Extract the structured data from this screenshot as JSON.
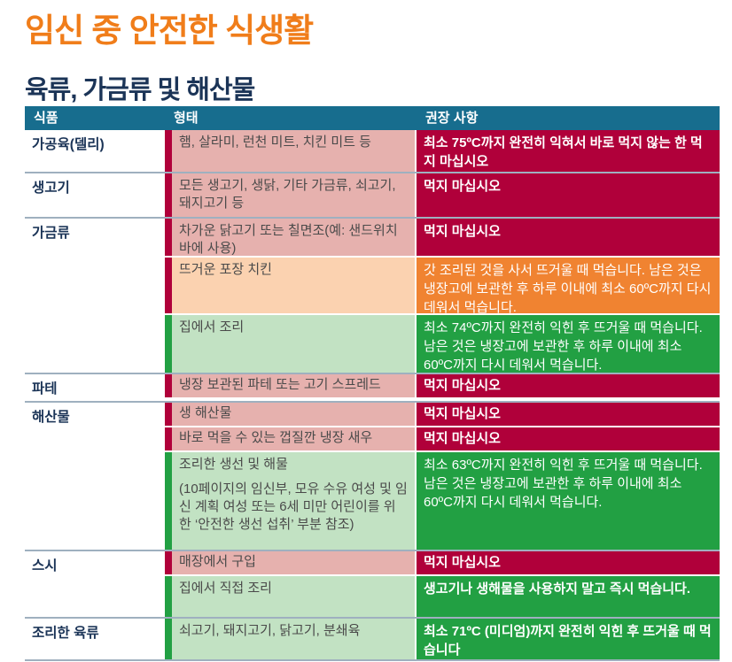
{
  "title": "임신 중 안전한 식생활",
  "subtitle": "육류, 가금류 및 해산물",
  "colors": {
    "header": "#176d8e",
    "avoid": "#b0003a",
    "caution": "#f08331",
    "safe": "#22a043",
    "title": "#f07d1a"
  },
  "table": {
    "headers": [
      "식품",
      "형태",
      "권장 사항"
    ],
    "groups": [
      {
        "category": "가공육(델리)",
        "rows": [
          {
            "level": "avoid",
            "form": "햄, 살라미, 런천 미트, 치킨 미트 등",
            "rec": "최소 75ºC까지 완전히 익혀서 바로 먹지 않는 한 먹지 마십시오"
          }
        ]
      },
      {
        "category": "생고기",
        "rows": [
          {
            "level": "avoid",
            "form": "모든 생고기, 생닭, 기타 가금류, 쇠고기, 돼지고기 등",
            "rec": "먹지 마십시오"
          }
        ]
      },
      {
        "category": "가금류",
        "rows": [
          {
            "level": "avoid",
            "form": "차가운 닭고기 또는 칠면조(예: 샌드위치 바에 사용)",
            "rec": "먹지 마십시오"
          },
          {
            "level": "caution",
            "form": "뜨거운 포장 치킨",
            "rec": "갓 조리된 것을 사서 뜨거울 때 먹습니다. 남은 것은 냉장고에 보관한 후 하루 이내에 최소 60ºC까지 다시 데워서 먹습니다."
          },
          {
            "level": "safe",
            "form": "집에서 조리",
            "rec": "최소 74ºC까지 완전히 익힌 후 뜨거울 때 먹습니다. 남은 것은 냉장고에 보관한 후 하루 이내에 최소 60ºC까지 다시 데워서 먹습니다."
          }
        ]
      },
      {
        "category": "파테",
        "rows": [
          {
            "level": "avoid",
            "form": "냉장 보관된 파테 또는 고기 스프레드",
            "rec": "먹지 마십시오"
          }
        ]
      },
      {
        "category": "해산물",
        "rows": [
          {
            "level": "avoid",
            "form": "생 해산물",
            "rec": "먹지 마십시오"
          },
          {
            "level": "avoid",
            "form": "바로 먹을 수 있는 껍질깐 냉장 새우",
            "rec": "먹지 마십시오"
          },
          {
            "level": "safe",
            "form": "조리한 생선 및 해물",
            "note": "(10페이지의 임신부, 모유 수유 여성 및 임신 계획 여성 또는 6세 미만 어린이를 위한 ‘안전한 생선 섭취’ 부분 참조)",
            "rec": "최소 63ºC까지 완전히 익힌 후 뜨거울 때 먹습니다. 남은 것은 냉장고에 보관한 후 하루 이내에 최소 60ºC까지 다시 데워서 먹습니다."
          }
        ]
      },
      {
        "category": "스시",
        "rows": [
          {
            "level": "avoid",
            "form": "매장에서 구입",
            "rec": "먹지 마십시오"
          },
          {
            "level": "safe",
            "form": "집에서 직접 조리",
            "rec": "생고기나 생해물을 사용하지 말고 즉시 먹습니다."
          }
        ]
      },
      {
        "category": "조리한 육류",
        "rows": [
          {
            "level": "safe",
            "form": "쇠고기, 돼지고기, 닭고기, 분쇄육",
            "rec": "최소 71ºC (미디엄)까지 완전히 익힌 후 뜨거울 때 먹습니다"
          }
        ]
      }
    ]
  }
}
